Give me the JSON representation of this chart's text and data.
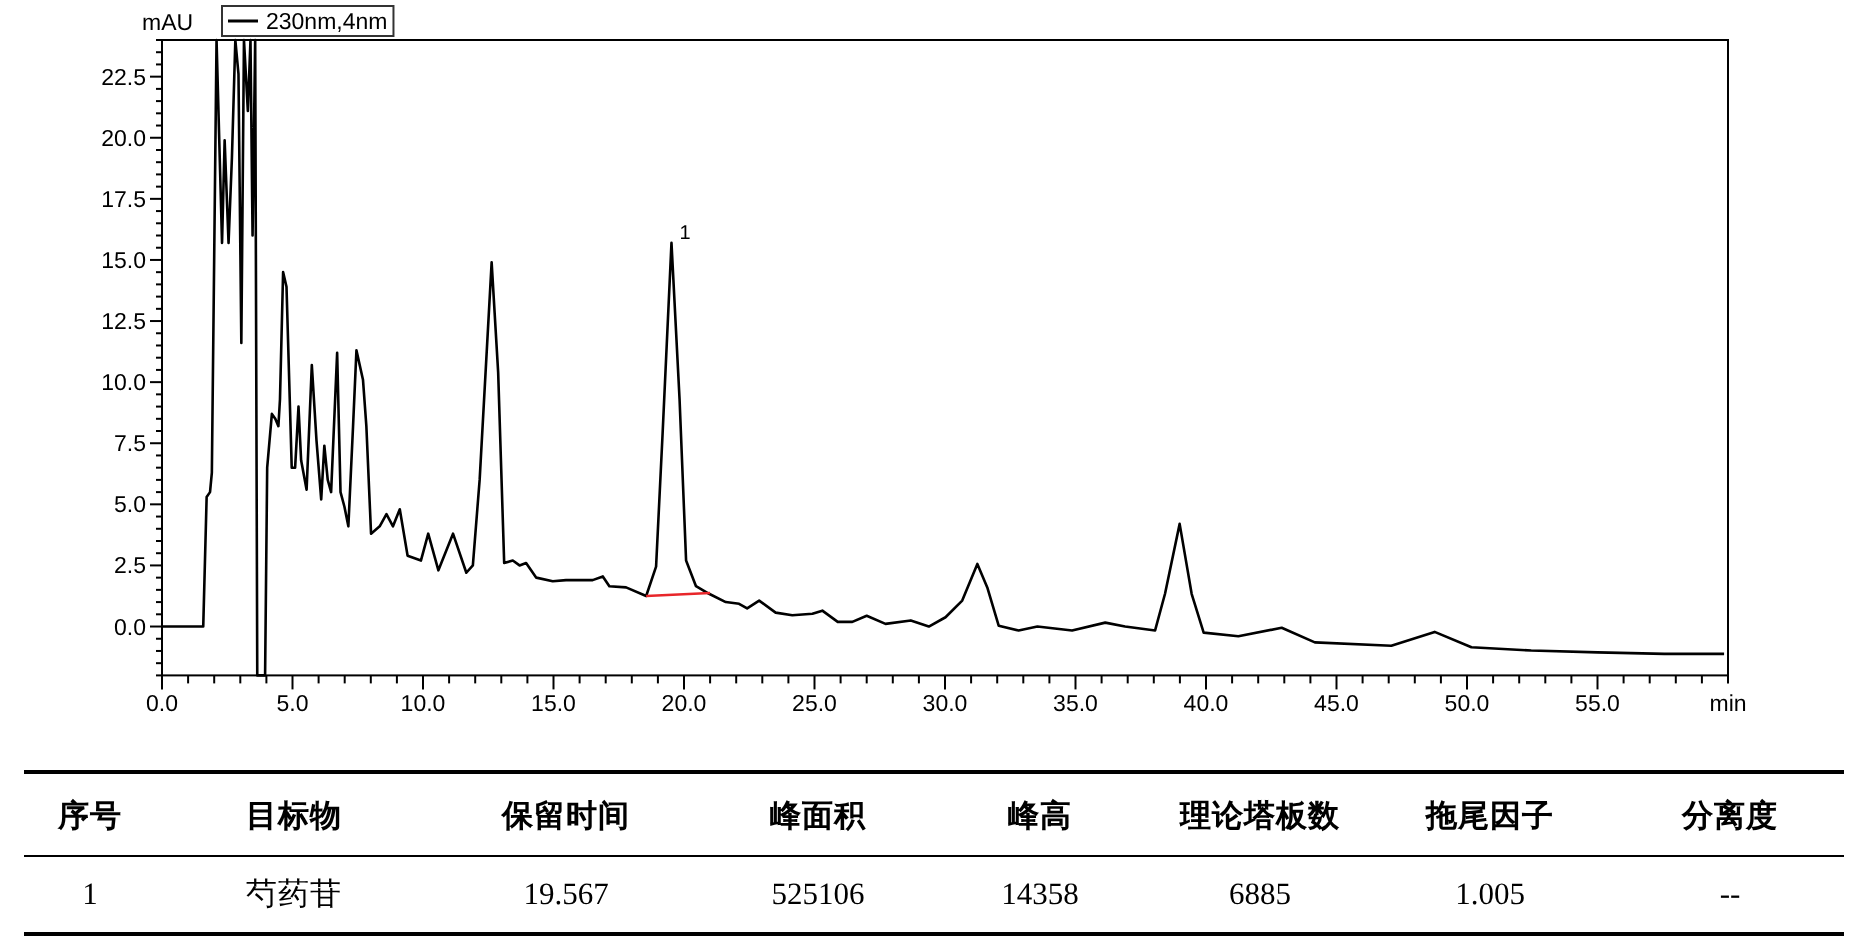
{
  "chart_data": {
    "type": "line",
    "xlabel": "min",
    "ylabel": "mAU",
    "legend": "top left",
    "xlim": [
      0,
      60
    ],
    "ylim": [
      -2,
      24
    ],
    "xticks": [
      {
        "value": 0,
        "label": "0.0"
      },
      {
        "value": 1,
        "label": null
      },
      {
        "value": 2,
        "label": null
      },
      {
        "value": 3,
        "label": null
      },
      {
        "value": 4,
        "label": null
      },
      {
        "value": 5,
        "label": "5.0"
      },
      {
        "value": 6,
        "label": null
      },
      {
        "value": 7,
        "label": null
      },
      {
        "value": 8,
        "label": null
      },
      {
        "value": 9,
        "label": null
      },
      {
        "value": 10,
        "label": "10.0"
      },
      {
        "value": 11,
        "label": null
      },
      {
        "value": 12,
        "label": null
      },
      {
        "value": 13,
        "label": null
      },
      {
        "value": 14,
        "label": null
      },
      {
        "value": 15,
        "label": "15.0"
      },
      {
        "value": 16,
        "label": null
      },
      {
        "value": 17,
        "label": null
      },
      {
        "value": 18,
        "label": null
      },
      {
        "value": 19,
        "label": null
      },
      {
        "value": 20,
        "label": "20.0"
      },
      {
        "value": 21,
        "label": null
      },
      {
        "value": 22,
        "label": null
      },
      {
        "value": 23,
        "label": null
      },
      {
        "value": 24,
        "label": null
      },
      {
        "value": 25,
        "label": "25.0"
      },
      {
        "value": 26,
        "label": null
      },
      {
        "value": 27,
        "label": null
      },
      {
        "value": 28,
        "label": null
      },
      {
        "value": 29,
        "label": null
      },
      {
        "value": 30,
        "label": "30.0"
      },
      {
        "value": 31,
        "label": null
      },
      {
        "value": 32,
        "label": null
      },
      {
        "value": 33,
        "label": null
      },
      {
        "value": 34,
        "label": null
      },
      {
        "value": 35,
        "label": "35.0"
      },
      {
        "value": 36,
        "label": null
      },
      {
        "value": 37,
        "label": null
      },
      {
        "value": 38,
        "label": null
      },
      {
        "value": 39,
        "label": null
      },
      {
        "value": 40,
        "label": "40.0"
      },
      {
        "value": 41,
        "label": null
      },
      {
        "value": 42,
        "label": null
      },
      {
        "value": 43,
        "label": null
      },
      {
        "value": 44,
        "label": null
      },
      {
        "value": 45,
        "label": "45.0"
      },
      {
        "value": 46,
        "label": null
      },
      {
        "value": 47,
        "label": null
      },
      {
        "value": 48,
        "label": null
      },
      {
        "value": 49,
        "label": null
      },
      {
        "value": 50,
        "label": "50.0"
      },
      {
        "value": 51,
        "label": null
      },
      {
        "value": 52,
        "label": null
      },
      {
        "value": 53,
        "label": null
      },
      {
        "value": 54,
        "label": null
      },
      {
        "value": 55,
        "label": "55.0"
      },
      {
        "value": 56,
        "label": null
      },
      {
        "value": 57,
        "label": null
      },
      {
        "value": 58,
        "label": null
      },
      {
        "value": 59,
        "label": null
      },
      {
        "value": 60,
        "label": null
      }
    ],
    "yticks": [
      {
        "value": -2,
        "label": null
      },
      {
        "value": -1.5,
        "label": null
      },
      {
        "value": -1,
        "label": null
      },
      {
        "value": -0.5,
        "label": null
      },
      {
        "value": 0,
        "label": "0.0"
      },
      {
        "value": 0.5,
        "label": null
      },
      {
        "value": 1,
        "label": null
      },
      {
        "value": 1.5,
        "label": null
      },
      {
        "value": 2,
        "label": null
      },
      {
        "value": 2.5,
        "label": "2.5"
      },
      {
        "value": 3,
        "label": null
      },
      {
        "value": 3.5,
        "label": null
      },
      {
        "value": 4,
        "label": null
      },
      {
        "value": 4.5,
        "label": null
      },
      {
        "value": 5,
        "label": "5.0"
      },
      {
        "value": 5.5,
        "label": null
      },
      {
        "value": 6,
        "label": null
      },
      {
        "value": 6.5,
        "label": null
      },
      {
        "value": 7,
        "label": null
      },
      {
        "value": 7.5,
        "label": "7.5"
      },
      {
        "value": 8,
        "label": null
      },
      {
        "value": 8.5,
        "label": null
      },
      {
        "value": 9,
        "label": null
      },
      {
        "value": 9.5,
        "label": null
      },
      {
        "value": 10,
        "label": "10.0"
      },
      {
        "value": 10.5,
        "label": null
      },
      {
        "value": 11,
        "label": null
      },
      {
        "value": 11.5,
        "label": null
      },
      {
        "value": 12,
        "label": null
      },
      {
        "value": 12.5,
        "label": "12.5"
      },
      {
        "value": 13,
        "label": null
      },
      {
        "value": 13.5,
        "label": null
      },
      {
        "value": 14,
        "label": null
      },
      {
        "value": 14.5,
        "label": null
      },
      {
        "value": 15,
        "label": "15.0"
      },
      {
        "value": 15.5,
        "label": null
      },
      {
        "value": 16,
        "label": null
      },
      {
        "value": 16.5,
        "label": null
      },
      {
        "value": 17,
        "label": null
      },
      {
        "value": 17.5,
        "label": "17.5"
      },
      {
        "value": 18,
        "label": null
      },
      {
        "value": 18.5,
        "label": null
      },
      {
        "value": 19,
        "label": null
      },
      {
        "value": 19.5,
        "label": null
      },
      {
        "value": 20,
        "label": "20.0"
      },
      {
        "value": 20.5,
        "label": null
      },
      {
        "value": 21,
        "label": null
      },
      {
        "value": 21.5,
        "label": null
      },
      {
        "value": 22,
        "label": null
      },
      {
        "value": 22.5,
        "label": "22.5"
      },
      {
        "value": 23,
        "label": null
      },
      {
        "value": 23.5,
        "label": null
      },
      {
        "value": 24,
        "label": null
      }
    ],
    "x": [
      0,
      1.58,
      1.71,
      1.84,
      1.91,
      2.09,
      2.3,
      2.4,
      2.55,
      2.68,
      2.81,
      2.93,
      3.04,
      3.14,
      3.29,
      3.39,
      3.47,
      3.57,
      3.65,
      3.95,
      4.03,
      4.21,
      4.34,
      4.46,
      4.52,
      4.64,
      4.77,
      4.97,
      5.1,
      5.23,
      5.33,
      5.54,
      5.74,
      5.92,
      6.1,
      6.22,
      6.35,
      6.48,
      6.71,
      6.84,
      6.99,
      7.14,
      7.32,
      7.45,
      7.7,
      7.83,
      8.01,
      8.34,
      8.6,
      8.85,
      9.11,
      9.41,
      9.92,
      10.2,
      10.59,
      11.15,
      11.66,
      11.91,
      12.17,
      12.63,
      12.88,
      13.11,
      13.44,
      13.7,
      13.95,
      14.34,
      14.97,
      15.48,
      16.5,
      16.89,
      17.14,
      17.78,
      18.55,
      18.93,
      19.18,
      19.52,
      19.83,
      20.08,
      20.46,
      20.96,
      21.6,
      22.11,
      22.42,
      22.88,
      23.51,
      24.15,
      24.92,
      25.3,
      25.89,
      26.45,
      27.0,
      27.72,
      28.69,
      29.38,
      30.02,
      30.66,
      31.24,
      31.62,
      32.06,
      32.82,
      33.54,
      34.87,
      36.14,
      36.9,
      38.05,
      38.43,
      38.99,
      39.45,
      39.91,
      41.24,
      42.9,
      44.17,
      47.1,
      48.76,
      50.17,
      52.46,
      55.0,
      57.56,
      59.85
    ],
    "series": [
      {
        "name": "230nm,4nm",
        "color": "#000000",
        "values": [
          0,
          0,
          5.3,
          5.5,
          6.3,
          24,
          15.7,
          19.9,
          15.7,
          19.2,
          24,
          22.6,
          11.6,
          24,
          21.1,
          24,
          16.0,
          24,
          -2,
          -2,
          6.5,
          8.7,
          8.5,
          8.2,
          9.3,
          14.5,
          13.9,
          6.5,
          6.5,
          9.0,
          6.8,
          5.6,
          10.7,
          7.6,
          5.2,
          7.4,
          6.0,
          5.5,
          11.2,
          5.5,
          4.9,
          4.1,
          8.2,
          11.3,
          10.1,
          8.2,
          3.8,
          4.1,
          4.6,
          4.1,
          4.8,
          2.9,
          2.7,
          3.8,
          2.3,
          3.8,
          2.2,
          2.5,
          6.0,
          14.9,
          10.4,
          2.6,
          2.7,
          2.5,
          2.6,
          2.0,
          1.85,
          1.9,
          1.9,
          2.05,
          1.65,
          1.6,
          1.25,
          2.45,
          7.9,
          15.7,
          9.3,
          2.7,
          1.65,
          1.34,
          1.0,
          0.93,
          0.74,
          1.06,
          0.57,
          0.46,
          0.52,
          0.65,
          0.19,
          0.19,
          0.44,
          0.11,
          0.25,
          0,
          0.38,
          1.06,
          2.56,
          1.6,
          0.03,
          -0.16,
          0,
          -0.16,
          0.16,
          0,
          -0.16,
          1.34,
          4.2,
          1.34,
          -0.25,
          -0.4,
          -0.05,
          -0.65,
          -0.79,
          -0.22,
          -0.85,
          -0.98,
          -1.06,
          -1.12,
          -1.12
        ]
      },
      {
        "type": "line",
        "color": "#e8262a",
        "x": [
          18.55,
          21.0
        ],
        "values": [
          1.25,
          1.37
        ]
      }
    ],
    "annotations": [
      {
        "text": "1",
        "x": 19.52,
        "y": 15.7
      },
      "序号",
      "目标物",
      "保留时间",
      "峰面积",
      "峰高",
      "理论塔板数",
      "拖尾因子",
      "分离度",
      "1",
      "芍药苷",
      "19.567",
      "525106",
      "14358",
      "6885",
      "1.005",
      "--"
    ]
  }
}
